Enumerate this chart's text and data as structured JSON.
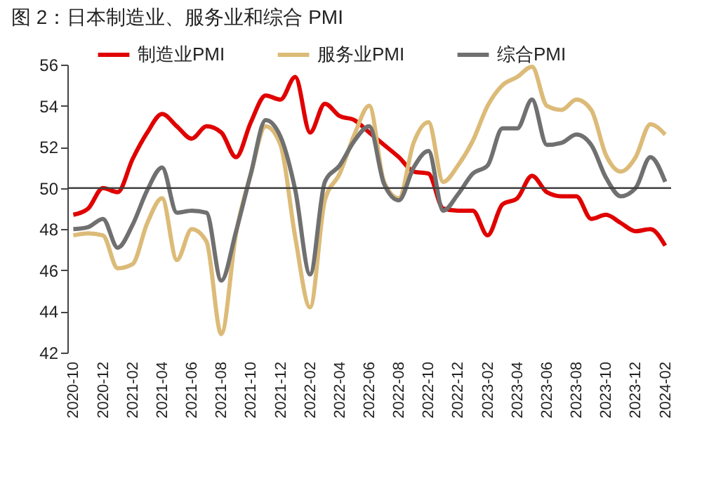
{
  "chart_data": {
    "type": "line",
    "title": "图 2：日本制造业、服务业和综合 PMI",
    "categories": [
      "2020-10",
      null,
      "2020-12",
      null,
      "2021-02",
      null,
      "2021-04",
      null,
      "2021-06",
      null,
      "2021-08",
      null,
      "2021-10",
      null,
      "2021-12",
      null,
      "2022-02",
      null,
      "2022-04",
      null,
      "2022-06",
      null,
      "2022-08",
      null,
      "2022-10",
      null,
      "2022-12",
      null,
      "2023-02",
      null,
      "2023-04",
      null,
      "2023-06",
      null,
      "2023-08",
      null,
      "2023-10",
      null,
      "2023-12",
      null,
      "2024-02"
    ],
    "series": [
      {
        "name": "制造业PMI",
        "color": "#e00000",
        "values": [
          48.7,
          49.0,
          50.0,
          49.8,
          51.4,
          52.7,
          53.6,
          53.0,
          52.4,
          53.0,
          52.7,
          51.5,
          53.2,
          54.5,
          54.3,
          55.4,
          52.7,
          54.1,
          53.5,
          53.3,
          52.7,
          52.1,
          51.5,
          50.8,
          50.7,
          49.0,
          48.9,
          48.9,
          47.7,
          49.2,
          49.5,
          50.6,
          49.8,
          49.6,
          49.6,
          48.5,
          48.7,
          48.3,
          47.9,
          48.0,
          47.2
        ]
      },
      {
        "name": "服务业PMI",
        "color": "#dcbb78",
        "values": [
          47.7,
          47.8,
          47.7,
          46.1,
          46.3,
          48.3,
          49.5,
          46.5,
          48.0,
          47.4,
          42.9,
          47.8,
          50.7,
          53.0,
          52.1,
          47.6,
          44.2,
          49.4,
          50.7,
          52.6,
          54.0,
          50.3,
          49.5,
          52.2,
          53.2,
          50.3,
          51.1,
          52.3,
          54.0,
          55.0,
          55.4,
          55.9,
          54.0,
          53.8,
          54.3,
          53.8,
          51.6,
          50.8,
          51.5,
          53.1,
          52.6
        ]
      },
      {
        "name": "综合PMI",
        "color": "#707070",
        "values": [
          48.0,
          48.1,
          48.5,
          47.1,
          48.2,
          49.9,
          51.0,
          48.8,
          48.9,
          48.8,
          45.5,
          47.9,
          50.7,
          53.3,
          52.5,
          49.9,
          45.8,
          50.3,
          51.1,
          52.3,
          53.0,
          50.2,
          49.4,
          51.0,
          51.8,
          48.9,
          49.7,
          50.7,
          51.1,
          52.9,
          52.9,
          54.3,
          52.1,
          52.2,
          52.6,
          52.1,
          50.5,
          49.6,
          50.0,
          51.5,
          50.3
        ]
      }
    ],
    "ylim": [
      42,
      56
    ],
    "yticks": [
      42,
      44,
      46,
      48,
      50,
      52,
      54,
      56
    ],
    "ref_lines": [
      {
        "axis": "y",
        "value": 50,
        "color": "#404040"
      }
    ],
    "legend": "top",
    "grid": false,
    "line_style": "solid"
  }
}
